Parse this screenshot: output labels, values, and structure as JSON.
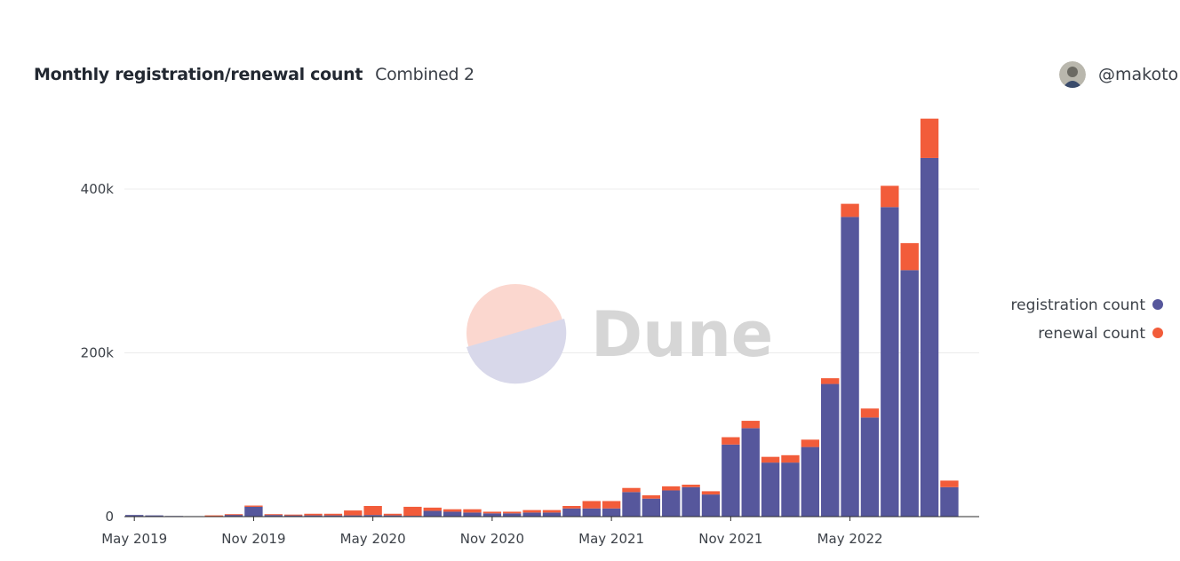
{
  "header": {
    "title": "Monthly registration/renewal count",
    "subtitle": "Combined 2"
  },
  "author": {
    "name": "@makoto"
  },
  "watermark": {
    "text": "Dune"
  },
  "colors": {
    "registration": "#56579c",
    "renewal": "#f25c3a"
  },
  "chart_data": {
    "type": "bar",
    "stacked": true,
    "categories": [
      "May 2019",
      "Jun 2019",
      "Jul 2019",
      "Aug 2019",
      "Sep 2019",
      "Oct 2019",
      "Nov 2019",
      "Dec 2019",
      "Jan 2020",
      "Feb 2020",
      "Mar 2020",
      "Apr 2020",
      "May 2020",
      "Jun 2020",
      "Jul 2020",
      "Aug 2020",
      "Sep 2020",
      "Oct 2020",
      "Nov 2020",
      "Dec 2020",
      "Jan 2021",
      "Feb 2021",
      "Mar 2021",
      "Apr 2021",
      "May 2021",
      "Jun 2021",
      "Jul 2021",
      "Aug 2021",
      "Sep 2021",
      "Oct 2021",
      "Nov 2021",
      "Dec 2021",
      "Jan 2022",
      "Feb 2022",
      "Mar 2022",
      "Apr 2022",
      "May 2022",
      "Jun 2022",
      "Jul 2022",
      "Aug 2022",
      "Sep 2022",
      "Oct 2022",
      "Nov 2022"
    ],
    "series": [
      {
        "name": "registration count",
        "values": [
          2000,
          1500,
          800,
          600,
          1000,
          2500,
          12000,
          2000,
          1500,
          1500,
          1500,
          1500,
          2000,
          1500,
          1000,
          7000,
          6000,
          5000,
          4000,
          4000,
          5000,
          5000,
          10000,
          10000,
          10000,
          30000,
          22000,
          32000,
          36000,
          27000,
          88000,
          108000,
          66000,
          66000,
          85000,
          162000,
          366000,
          121000,
          378000,
          301000,
          438000,
          36000,
          0
        ]
      },
      {
        "name": "renewal count",
        "values": [
          0,
          0,
          0,
          0,
          500,
          500,
          1500,
          1000,
          1000,
          2000,
          2000,
          6000,
          11000,
          2000,
          11000,
          4000,
          3000,
          4000,
          2000,
          2000,
          3000,
          3000,
          3000,
          9000,
          9000,
          5000,
          4000,
          5000,
          3000,
          4000,
          9000,
          9000,
          7000,
          9000,
          9000,
          7000,
          16000,
          11000,
          26000,
          33000,
          48000,
          8000,
          0
        ]
      }
    ],
    "x_tick_labels": [
      "May 2019",
      "Nov 2019",
      "May 2020",
      "Nov 2020",
      "May 2021",
      "Nov 2021",
      "May 2022"
    ],
    "y_tick_labels": [
      "0",
      "200k",
      "400k"
    ],
    "ylim": [
      0,
      490000
    ],
    "grid": true,
    "legend_position": "right"
  }
}
